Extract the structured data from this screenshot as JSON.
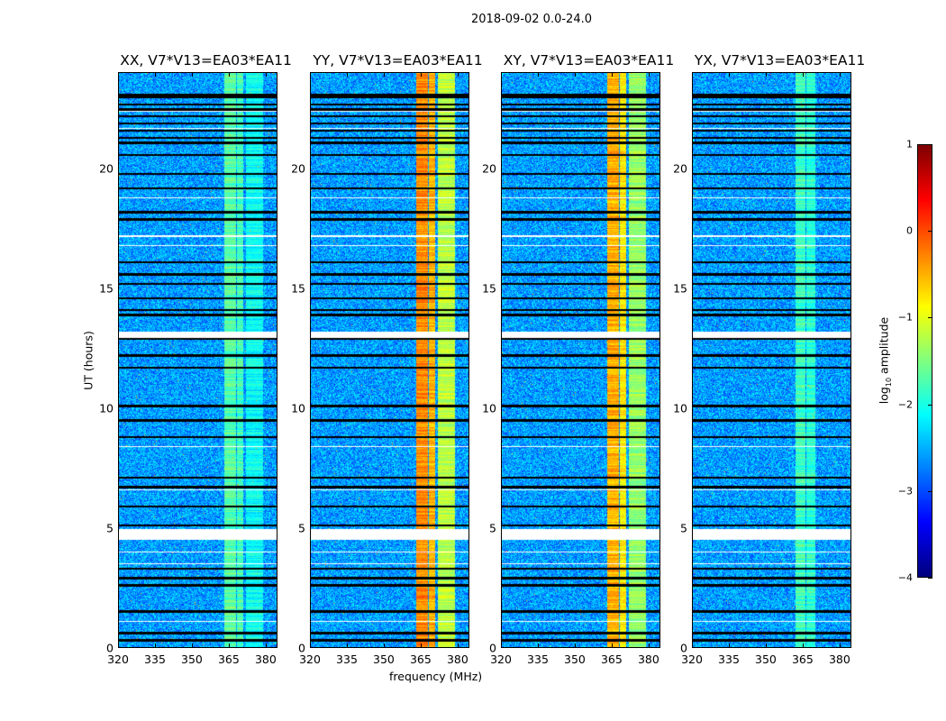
{
  "chart_data": {
    "type": "heatmap",
    "title": "2018-09-02 0.0-24.0",
    "xlabel": "frequency (MHz)",
    "ylabel": "UT (hours)",
    "xlim": [
      320,
      384.8
    ],
    "ylim": [
      0,
      24
    ],
    "xticks": [
      "320",
      "335",
      "350",
      "365",
      "380"
    ],
    "xtick_values": [
      320,
      335,
      350,
      365,
      380
    ],
    "yticks": [
      "0",
      "5",
      "10",
      "15",
      "20"
    ],
    "ytick_values": [
      0,
      5,
      10,
      15,
      20
    ],
    "colorbar": {
      "label_prefix": "log",
      "label_sub": "10",
      "label_suffix": " amplitude",
      "range": [
        -4,
        1
      ],
      "ticks": [
        "1",
        "0",
        "−1",
        "−2",
        "−3",
        "−4"
      ],
      "tick_values": [
        1,
        0,
        -1,
        -2,
        -3,
        -4
      ],
      "colormap": "jet"
    },
    "background_level": -2.6,
    "flagged_black_ut": [
      0.3,
      0.6,
      1.5,
      2.6,
      2.9,
      3.3,
      5.1,
      5.9,
      6.7,
      7.1,
      8.8,
      9.5,
      10.1,
      11.7,
      12.2,
      12.9,
      13.9,
      14.1,
      14.6,
      15.2,
      15.6,
      16.1,
      17.9,
      18.2,
      19.2,
      19.8,
      20.6,
      21.1,
      21.3,
      21.6,
      21.9,
      22.2,
      22.5,
      22.7,
      23.0,
      23.1
    ],
    "flagged_white_ut": [
      1.1,
      3.5,
      4.0,
      6.6,
      8.4,
      16.8,
      17.2,
      18.8,
      21.7,
      22.4
    ],
    "blank_intervals_ut": [
      [
        4.5,
        4.95
      ],
      [
        12.95,
        13.2
      ]
    ],
    "panels": [
      {
        "title": "XX, V7*V13=EA03*EA11",
        "rfi_bands": [
          {
            "mhz": [
              363,
              368
            ],
            "level": -1.7
          },
          {
            "mhz": [
              368.5,
              371
            ],
            "level": -1.8
          },
          {
            "mhz": [
              372,
              379
            ],
            "level": -2.1
          }
        ]
      },
      {
        "title": "YY, V7*V13=EA03*EA11",
        "rfi_bands": [
          {
            "mhz": [
              363,
              368
            ],
            "level": -0.3
          },
          {
            "mhz": [
              368.5,
              371
            ],
            "level": -0.5
          },
          {
            "mhz": [
              372,
              379
            ],
            "level": -1.2
          }
        ]
      },
      {
        "title": "XY, V7*V13=EA03*EA11",
        "rfi_bands": [
          {
            "mhz": [
              363,
              368
            ],
            "level": -0.5
          },
          {
            "mhz": [
              368.5,
              371
            ],
            "level": -0.8
          },
          {
            "mhz": [
              372,
              379
            ],
            "level": -1.4
          }
        ]
      },
      {
        "title": "YX, V7*V13=EA03*EA11",
        "rfi_bands": [
          {
            "mhz": [
              362,
              366
            ],
            "level": -1.8
          },
          {
            "mhz": [
              366.5,
              370
            ],
            "level": -1.9
          }
        ]
      }
    ]
  }
}
